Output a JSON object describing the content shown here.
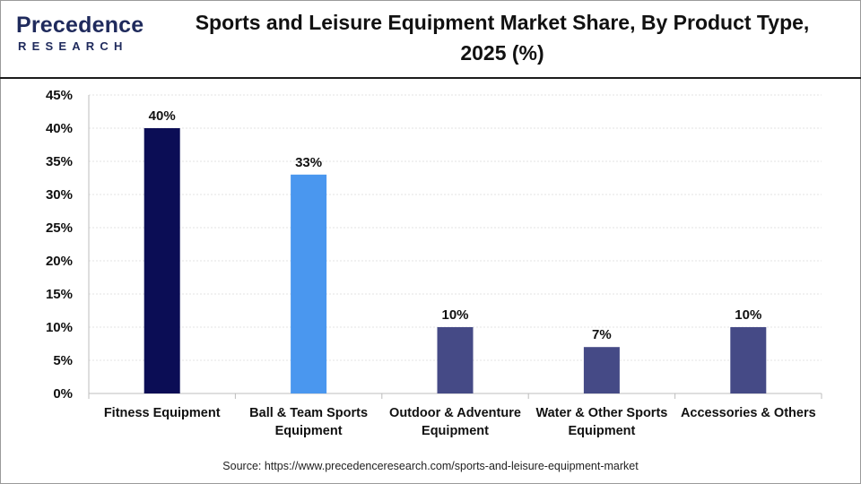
{
  "brand": {
    "name": "Precedence",
    "sub": "RESEARCH",
    "logo_color": "#1f2a5c"
  },
  "source_text": "Source: https://www.precedenceresearch.com/sports-and-leisure-equipment-market",
  "chart_data": {
    "type": "bar",
    "title": "Sports and Leisure Equipment Market Share, By Product Type, 2025 (%)",
    "xlabel": "",
    "ylabel": "",
    "categories": [
      [
        "Fitness Equipment"
      ],
      [
        "Ball & Team Sports",
        "Equipment"
      ],
      [
        "Outdoor & Adventure",
        "Equipment"
      ],
      [
        "Water & Other Sports",
        "Equipment"
      ],
      [
        "Accessories & Others"
      ]
    ],
    "values": [
      40,
      33,
      10,
      7,
      10
    ],
    "data_labels": [
      "40%",
      "33%",
      "10%",
      "7%",
      "10%"
    ],
    "colors": [
      "#0b0d55",
      "#4a97ef",
      "#454a86",
      "#454a86",
      "#454a86"
    ],
    "ylim": [
      0,
      45
    ],
    "yticks": [
      0,
      5,
      10,
      15,
      20,
      25,
      30,
      35,
      40,
      45
    ],
    "ytick_labels": [
      "0%",
      "5%",
      "10%",
      "15%",
      "20%",
      "25%",
      "30%",
      "35%",
      "40%",
      "45%"
    ],
    "grid": true,
    "legend": "none"
  }
}
